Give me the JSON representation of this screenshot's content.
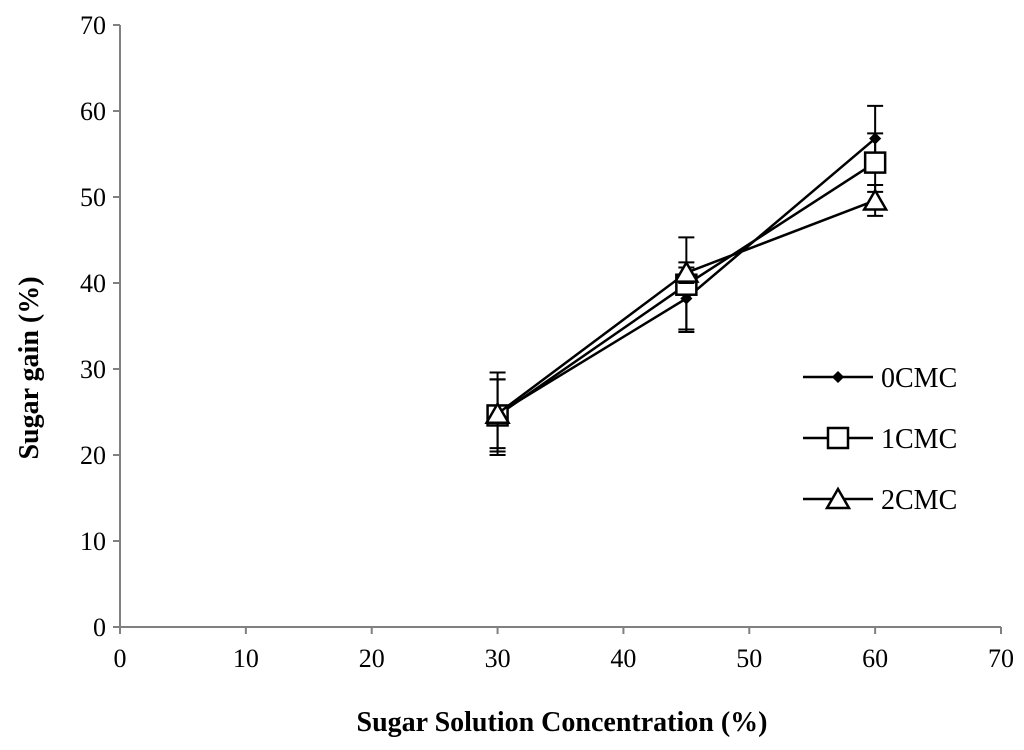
{
  "chart_data": {
    "type": "line",
    "title": "",
    "xlabel": "Sugar Solution Concentration (%)",
    "ylabel": "Sugar gain (%)",
    "xlim": [
      0,
      70
    ],
    "ylim": [
      0,
      70
    ],
    "xticks": [
      0,
      10,
      20,
      30,
      40,
      50,
      60,
      70
    ],
    "yticks": [
      0,
      10,
      20,
      30,
      40,
      50,
      60,
      70
    ],
    "grid": false,
    "legend_position": "right",
    "x": [
      30,
      45,
      60
    ],
    "series": [
      {
        "name": "0CMC",
        "marker": "diamond",
        "values": [
          24.8,
          38.2,
          56.8
        ],
        "errors": [
          4.8,
          3.6,
          3.8
        ]
      },
      {
        "name": "1CMC",
        "marker": "square",
        "values": [
          24.6,
          39.8,
          54.0
        ],
        "errors": [
          4.2,
          5.5,
          3.4
        ]
      },
      {
        "name": "2CMC",
        "marker": "triangle",
        "values": [
          24.8,
          41.2,
          49.6
        ],
        "errors": [
          4.0,
          1.2,
          1.8
        ]
      }
    ],
    "colors": {
      "line": "#000000",
      "axis": "#808080"
    }
  }
}
